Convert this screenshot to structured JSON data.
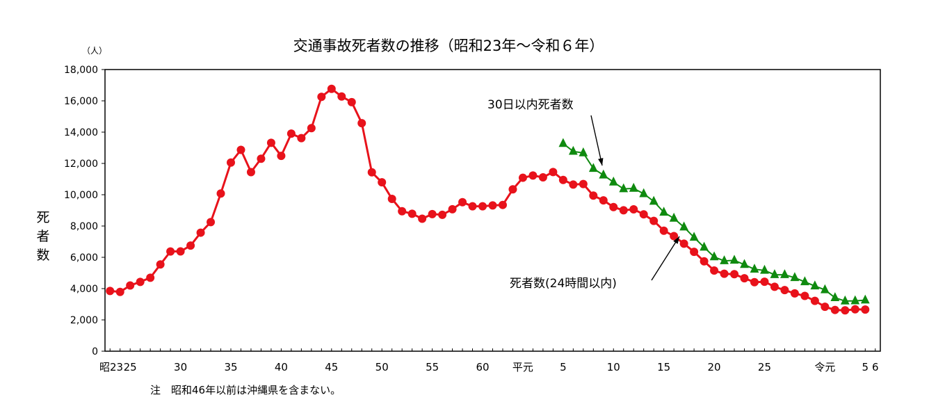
{
  "chart_data": {
    "type": "line",
    "title": "交通事故死者数の推移（昭和23年～令和６年）",
    "unit_label": "（人）",
    "ylabel": "死者数",
    "note": "注　昭和46年以前は沖縄県を含まない。",
    "ylim": [
      0,
      18000
    ],
    "y_ticks": [
      "0",
      "2,000",
      "4,000",
      "6,000",
      "8,000",
      "10,000",
      "12,000",
      "14,000",
      "16,000",
      "18,000"
    ],
    "y_tick_values": [
      0,
      2000,
      4000,
      6000,
      8000,
      10000,
      12000,
      14000,
      16000,
      18000
    ],
    "x_start_year": 1948,
    "x_ticks": [
      {
        "year": 1948,
        "label": "昭23"
      },
      {
        "year": 1950,
        "label": "25"
      },
      {
        "year": 1955,
        "label": "30"
      },
      {
        "year": 1960,
        "label": "35"
      },
      {
        "year": 1965,
        "label": "40"
      },
      {
        "year": 1970,
        "label": "45"
      },
      {
        "year": 1975,
        "label": "50"
      },
      {
        "year": 1980,
        "label": "55"
      },
      {
        "year": 1985,
        "label": "60"
      },
      {
        "year": 1989,
        "label": "平元"
      },
      {
        "year": 1993,
        "label": "5"
      },
      {
        "year": 1998,
        "label": "10"
      },
      {
        "year": 2003,
        "label": "15"
      },
      {
        "year": 2008,
        "label": "20"
      },
      {
        "year": 2013,
        "label": "25"
      },
      {
        "year": 2019,
        "label": "令元"
      },
      {
        "year": 2023,
        "label": "5"
      },
      {
        "year": 2024,
        "label": "6"
      }
    ],
    "grid": false,
    "series": [
      {
        "name": "死者数(24時間以内)",
        "color": "#e8121b",
        "marker": "circle",
        "start_year": 1948,
        "values": [
          3848,
          3790,
          4202,
          4429,
          4696,
          5544,
          6374,
          6379,
          6751,
          7575,
          8248,
          10079,
          12055,
          12865,
          11445,
          12301,
          13318,
          12484,
          13904,
          13618,
          14256,
          16257,
          16765,
          16278,
          15918,
          14574,
          11432,
          10792,
          9734,
          8945,
          8783,
          8466,
          8760,
          8719,
          9073,
          9520,
          9262,
          9261,
          9317,
          9347,
          10344,
          11086,
          11227,
          11109,
          11452,
          10942,
          10649,
          10684,
          9942,
          9640,
          9211,
          9006,
          9066,
          8747,
          8326,
          7702,
          7358,
          6871,
          6352,
          5744,
          5155,
          4948,
          4922,
          4663,
          4411,
          4438,
          4117,
          3904,
          3694,
          3532,
          3215,
          2839,
          2636,
          2610,
          2678,
          2663
        ]
      },
      {
        "name": "30日以内死者数",
        "color": "#0f8a0f",
        "marker": "triangle",
        "start_year": 1993,
        "values": [
          13269,
          12768,
          12670,
          11674,
          11254,
          10805,
          10372,
          10403,
          10060,
          9575,
          8877,
          8492,
          7931,
          7272,
          6639,
          6023,
          5772,
          5806,
          5535,
          5237,
          5165,
          4885,
          4885,
          4698,
          4431,
          4166,
          3920,
          3416,
          3205,
          3216,
          3263
        ]
      }
    ],
    "annotations": [
      {
        "text": "30日以内死者数",
        "series": 1
      },
      {
        "text": "死者数(24時間以内)",
        "series": 0
      }
    ]
  }
}
